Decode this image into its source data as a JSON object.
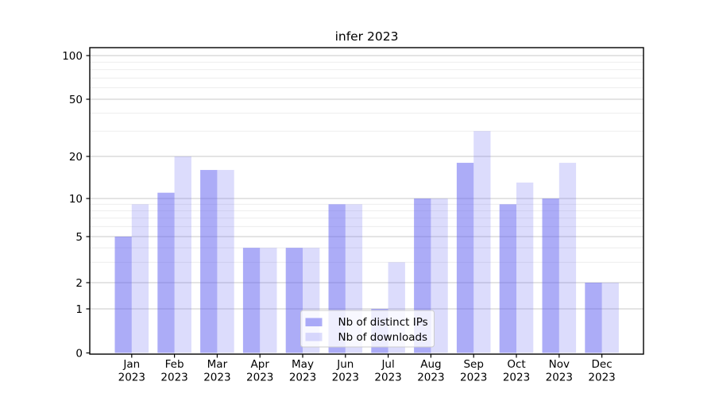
{
  "chart_data": {
    "type": "bar",
    "title": "infer 2023",
    "categories": [
      "Jan",
      "Feb",
      "Mar",
      "Apr",
      "May",
      "Jun",
      "Jul",
      "Aug",
      "Sep",
      "Oct",
      "Nov",
      "Dec"
    ],
    "x_year_label": "2023",
    "series": [
      {
        "name": "Nb of distinct IPs",
        "color": "#5f5ff0",
        "alpha": 0.52,
        "values": [
          5,
          11,
          16,
          4,
          4,
          9,
          1,
          10,
          18,
          9,
          10,
          2
        ]
      },
      {
        "name": "Nb of downloads",
        "color": "#5f5ff0",
        "alpha": 0.22,
        "values": [
          9,
          20,
          16,
          4,
          4,
          9,
          3,
          10,
          30,
          13,
          18,
          2
        ]
      }
    ],
    "yscale": "symlog",
    "yticks": [
      0,
      1,
      2,
      5,
      10,
      20,
      50,
      100
    ],
    "minor_yticks": [
      3,
      4,
      6,
      7,
      8,
      9,
      30,
      40,
      60,
      70,
      80,
      90
    ],
    "ylim": [
      0,
      115
    ],
    "grid": true,
    "legend_position": "lower center"
  }
}
